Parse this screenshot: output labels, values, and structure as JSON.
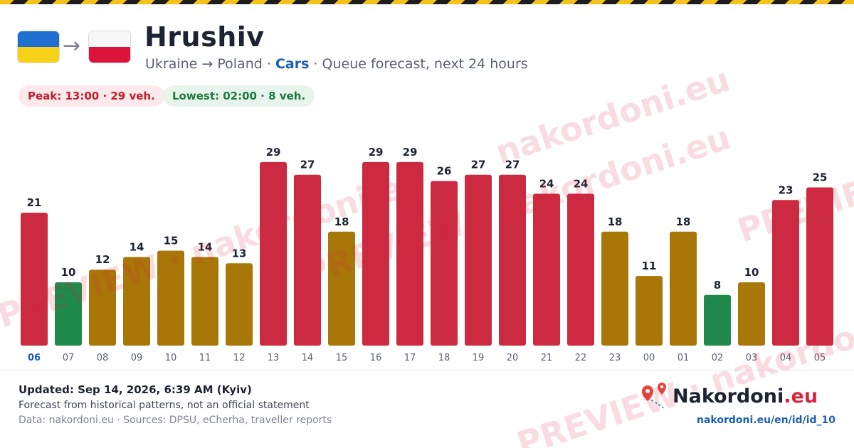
{
  "header": {
    "title": "Hrushiv",
    "route": "Ukraine → Poland",
    "separator": "·",
    "vehicle": "Cars",
    "forecast_label": "Queue forecast, next 24 hours",
    "arrow": "→",
    "origin_flag": "ukraine-flag",
    "destination_flag": "poland-flag"
  },
  "badges": {
    "peak": "Peak: 13:00 · 29 veh.",
    "lowest": "Lowest: 02:00 · 8 veh."
  },
  "chart_data": {
    "type": "bar",
    "categories": [
      "06",
      "07",
      "08",
      "09",
      "10",
      "11",
      "12",
      "13",
      "14",
      "15",
      "16",
      "17",
      "18",
      "19",
      "20",
      "21",
      "22",
      "23",
      "00",
      "01",
      "02",
      "03",
      "04",
      "05"
    ],
    "values": [
      21,
      10,
      12,
      14,
      15,
      14,
      13,
      29,
      27,
      18,
      29,
      29,
      26,
      27,
      27,
      24,
      24,
      18,
      11,
      18,
      8,
      10,
      23,
      25
    ],
    "levels": [
      "high",
      "low",
      "medium",
      "medium",
      "medium",
      "medium",
      "medium",
      "high",
      "high",
      "medium",
      "high",
      "high",
      "high",
      "high",
      "high",
      "high",
      "high",
      "medium",
      "medium",
      "medium",
      "low",
      "medium",
      "high",
      "high"
    ],
    "current_category": "06",
    "ylim": [
      0,
      29
    ],
    "grid": false,
    "colors": {
      "high": "#cc2a40",
      "medium": "#a97708",
      "low": "#1f8a4c"
    }
  },
  "footer": {
    "updated": "Updated: Sep 14, 2026, 6:39 AM (Kyiv)",
    "note": "Forecast from historical patterns, not an official statement",
    "sources": "Data: nakordoni.eu · Sources: DPSU, eCherha, traveller reports",
    "brand_name": "Nakordoni",
    "brand_tld": ".eu",
    "url": "nakordoni.eu/en/id/id_10",
    "brand_icon": "route-pins-icon"
  },
  "watermarks": [
    "nakordoni.eu",
    "PREVIEW · nakordoni.eu",
    "PREVIEW · nakordoni.eu",
    "PREVIEW · nakordoni.eu",
    "PREVIEW"
  ]
}
